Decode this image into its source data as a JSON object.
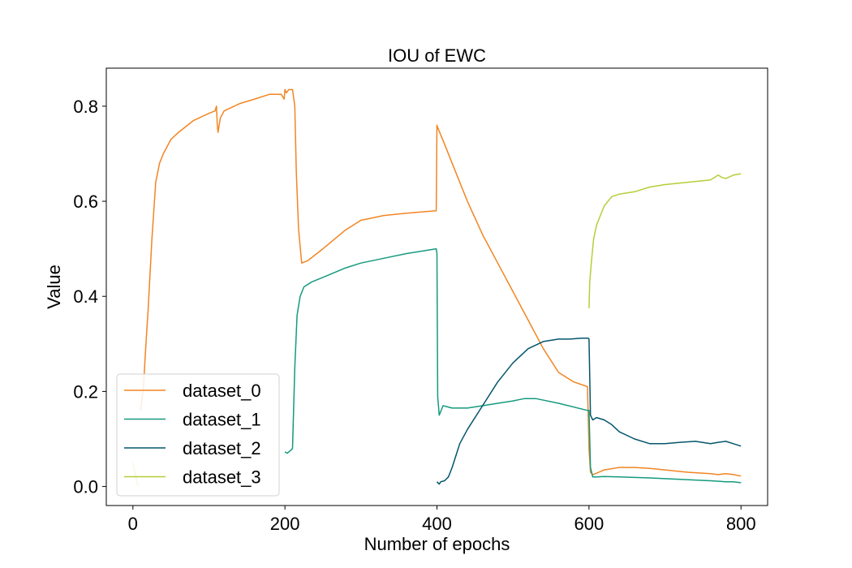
{
  "chart_data": {
    "type": "line",
    "title": "IOU of EWC",
    "xlabel": "Number of epochs",
    "ylabel": "Value",
    "xlim": [
      -35,
      835
    ],
    "ylim": [
      -0.04,
      0.88
    ],
    "xticks": [
      0,
      200,
      400,
      600,
      800
    ],
    "yticks": [
      0.0,
      0.2,
      0.4,
      0.6,
      0.8
    ],
    "xtick_labels": [
      "0",
      "200",
      "400",
      "600",
      "800"
    ],
    "ytick_labels": [
      "0.0",
      "0.2",
      "0.4",
      "0.6",
      "0.8"
    ],
    "grid": false,
    "legend_position": "lower-left",
    "series": [
      {
        "name": "dataset_0",
        "color": "#f28522",
        "x": [
          10,
          14,
          16,
          18,
          20,
          25,
          30,
          35,
          40,
          50,
          60,
          80,
          100,
          108,
          110,
          111,
          112,
          115,
          120,
          140,
          160,
          180,
          195,
          199,
          200,
          202,
          205,
          210,
          213,
          215,
          218,
          222,
          230,
          250,
          280,
          300,
          330,
          360,
          399,
          400,
          401,
          410,
          420,
          440,
          460,
          480,
          500,
          520,
          540,
          560,
          580,
          598,
          600,
          602,
          605,
          610,
          620,
          640,
          660,
          680,
          700,
          730,
          760,
          770,
          780,
          790,
          800
        ],
        "y": [
          0.16,
          0.21,
          0.27,
          0.32,
          0.37,
          0.52,
          0.64,
          0.68,
          0.7,
          0.73,
          0.745,
          0.77,
          0.785,
          0.79,
          0.8,
          0.76,
          0.745,
          0.775,
          0.79,
          0.805,
          0.815,
          0.825,
          0.825,
          0.815,
          0.835,
          0.828,
          0.835,
          0.835,
          0.8,
          0.66,
          0.54,
          0.47,
          0.475,
          0.5,
          0.54,
          0.56,
          0.57,
          0.575,
          0.58,
          0.76,
          0.755,
          0.72,
          0.68,
          0.6,
          0.53,
          0.47,
          0.41,
          0.35,
          0.29,
          0.24,
          0.22,
          0.21,
          0.08,
          0.03,
          0.025,
          0.028,
          0.035,
          0.04,
          0.04,
          0.038,
          0.035,
          0.03,
          0.027,
          0.025,
          0.027,
          0.025,
          0.022
        ]
      },
      {
        "name": "dataset_1",
        "color": "#159a7e",
        "x": [
          200,
          203,
          207,
          210,
          213,
          216,
          220,
          225,
          235,
          250,
          280,
          300,
          330,
          360,
          399,
          400,
          401,
          403,
          408,
          420,
          440,
          460,
          480,
          500,
          515,
          530,
          560,
          598,
          600,
          602,
          605,
          610,
          620,
          640,
          680,
          720,
          760,
          780,
          790,
          800
        ],
        "y": [
          0.073,
          0.07,
          0.075,
          0.08,
          0.25,
          0.36,
          0.4,
          0.42,
          0.43,
          0.44,
          0.46,
          0.47,
          0.48,
          0.49,
          0.5,
          0.49,
          0.19,
          0.15,
          0.17,
          0.165,
          0.165,
          0.17,
          0.175,
          0.18,
          0.185,
          0.185,
          0.175,
          0.16,
          0.16,
          0.04,
          0.02,
          0.02,
          0.021,
          0.02,
          0.018,
          0.015,
          0.012,
          0.01,
          0.01,
          0.008
        ]
      },
      {
        "name": "dataset_2",
        "color": "#04556c",
        "x": [
          400,
          403,
          405,
          410,
          415,
          420,
          430,
          440,
          460,
          480,
          500,
          520,
          540,
          560,
          575,
          590,
          599,
          600,
          602,
          605,
          610,
          620,
          630,
          640,
          660,
          680,
          700,
          720,
          740,
          760,
          770,
          780,
          790,
          800
        ],
        "y": [
          0.01,
          0.005,
          0.01,
          0.012,
          0.02,
          0.04,
          0.09,
          0.12,
          0.17,
          0.22,
          0.26,
          0.29,
          0.305,
          0.31,
          0.31,
          0.312,
          0.312,
          0.31,
          0.15,
          0.14,
          0.145,
          0.14,
          0.13,
          0.115,
          0.1,
          0.09,
          0.09,
          0.093,
          0.095,
          0.09,
          0.093,
          0.095,
          0.09,
          0.085
        ]
      },
      {
        "name": "dataset_3",
        "color": "#b3cf39",
        "x": [
          0,
          2,
          4,
          6,
          8,
          600,
          601,
          603,
          606,
          610,
          615,
          620,
          630,
          640,
          660,
          680,
          700,
          730,
          760,
          770,
          775,
          780,
          790,
          800
        ],
        "y": [
          0.05,
          0.035,
          0.02,
          0.005,
          0.0,
          0.375,
          0.43,
          0.47,
          0.52,
          0.55,
          0.57,
          0.59,
          0.61,
          0.615,
          0.62,
          0.63,
          0.635,
          0.64,
          0.645,
          0.655,
          0.65,
          0.648,
          0.655,
          0.658
        ]
      }
    ]
  }
}
